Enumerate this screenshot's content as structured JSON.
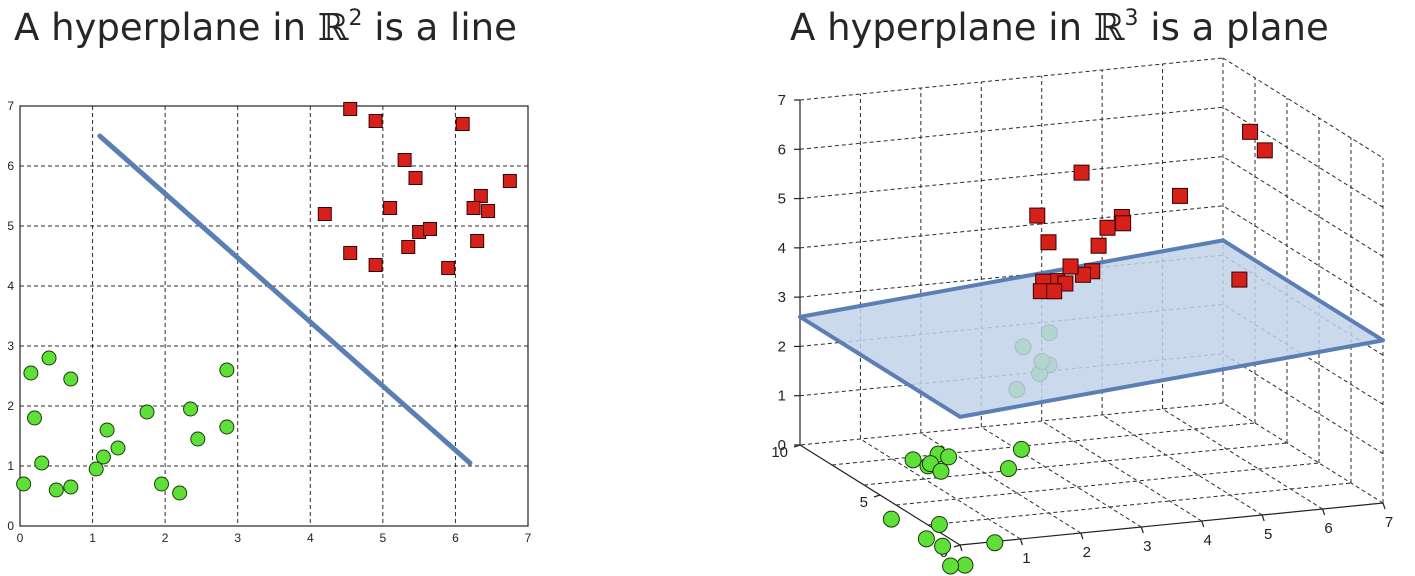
{
  "titles": {
    "left": {
      "prefix": "A hyperplane in ",
      "symbol": "ℝ",
      "power": "2",
      "suffix": " is a line"
    },
    "right": {
      "prefix": "A hyperplane in ",
      "symbol": "ℝ",
      "power": "3",
      "suffix": " is a plane"
    }
  },
  "colors": {
    "class_red": "#d6201a",
    "class_green": "#5ee038",
    "hyperplane": "#5b7fb4",
    "plane_fill": "#c2d2ea"
  },
  "chart_data": [
    {
      "type": "scatter",
      "xlim": [
        0,
        7
      ],
      "ylim": [
        0,
        7
      ],
      "grid": true,
      "x_ticks": [
        "0",
        "1",
        "2",
        "3",
        "4",
        "5",
        "6",
        "7"
      ],
      "y_ticks": [
        "0",
        "1",
        "2",
        "3",
        "4",
        "5",
        "6",
        "7"
      ],
      "series": [
        {
          "marker": "square",
          "color": "#d6201a",
          "points": [
            [
              4.55,
              6.95
            ],
            [
              4.9,
              6.75
            ],
            [
              6.1,
              6.7
            ],
            [
              5.3,
              6.1
            ],
            [
              5.45,
              5.8
            ],
            [
              6.75,
              5.75
            ],
            [
              6.35,
              5.5
            ],
            [
              4.2,
              5.2
            ],
            [
              5.1,
              5.3
            ],
            [
              6.25,
              5.3
            ],
            [
              6.45,
              5.25
            ],
            [
              5.5,
              4.9
            ],
            [
              5.65,
              4.95
            ],
            [
              5.35,
              4.65
            ],
            [
              6.3,
              4.75
            ],
            [
              4.55,
              4.55
            ],
            [
              4.9,
              4.35
            ],
            [
              5.9,
              4.3
            ]
          ]
        },
        {
          "marker": "circle",
          "color": "#5ee038",
          "points": [
            [
              0.4,
              2.8
            ],
            [
              0.15,
              2.55
            ],
            [
              0.7,
              2.45
            ],
            [
              2.85,
              2.6
            ],
            [
              1.75,
              1.9
            ],
            [
              2.35,
              1.95
            ],
            [
              0.2,
              1.8
            ],
            [
              1.2,
              1.6
            ],
            [
              2.85,
              1.65
            ],
            [
              2.45,
              1.45
            ],
            [
              1.35,
              1.3
            ],
            [
              1.15,
              1.15
            ],
            [
              0.3,
              1.05
            ],
            [
              1.05,
              0.95
            ],
            [
              0.05,
              0.7
            ],
            [
              0.5,
              0.6
            ],
            [
              0.7,
              0.65
            ],
            [
              1.95,
              0.7
            ],
            [
              2.2,
              0.55
            ]
          ]
        }
      ],
      "line": {
        "x": [
          1.1,
          6.2
        ],
        "y": [
          6.5,
          1.05
        ]
      }
    },
    {
      "type": "scatter",
      "dimensions": 3,
      "xlim": [
        0,
        7
      ],
      "ylim": [
        0,
        10
      ],
      "zlim": [
        0,
        7
      ],
      "grid": true,
      "x_ticks": [
        "0",
        "1",
        "2",
        "3",
        "4",
        "5",
        "6",
        "7"
      ],
      "y_ticks": [
        "0",
        "5",
        "10"
      ],
      "z_ticks": [
        "0",
        "1",
        "2",
        "3",
        "4",
        "5",
        "6",
        "7"
      ],
      "series": [
        {
          "marker": "square",
          "color": "#d6201a",
          "points": [
            [
              3.6,
              6.0,
              5.9
            ],
            [
              6.6,
              6.8,
              6.2
            ],
            [
              6.5,
              5.5,
              6.1
            ],
            [
              3.0,
              6.5,
              5.0
            ],
            [
              4.4,
              7.4,
              4.4
            ],
            [
              4.4,
              6.5,
              4.8
            ],
            [
              4.5,
              6.8,
              4.6
            ],
            [
              3.0,
              5.8,
              4.6
            ],
            [
              5.6,
              7.4,
              4.9
            ],
            [
              6.0,
              5.2,
              3.6
            ],
            [
              3.1,
              4.8,
              4.3
            ],
            [
              2.7,
              5.0,
              4.0
            ],
            [
              3.2,
              4.4,
              4.2
            ],
            [
              2.8,
              4.5,
              4.1
            ],
            [
              3.3,
              4.2,
              4.3
            ],
            [
              3.2,
              5.5,
              3.8
            ],
            [
              3.2,
              6.2,
              3.5
            ],
            [
              2.9,
              5.9,
              3.6
            ],
            [
              4.2,
              7.2,
              4.1
            ]
          ]
        },
        {
          "marker": "circle",
          "color": "#5ee038",
          "points": [
            [
              2.5,
              5.5,
              2.6
            ],
            [
              2.0,
              4.0,
              2.1
            ],
            [
              3.2,
              6.5,
              2.6
            ],
            [
              2.8,
              5.0,
              2.3
            ],
            [
              3.0,
              6.2,
              2.1
            ],
            [
              2.8,
              5.6,
              2.0
            ],
            [
              0.6,
              5.2,
              0.6
            ],
            [
              0.9,
              5.4,
              0.4
            ],
            [
              1.2,
              5.9,
              0.5
            ],
            [
              1.1,
              6.0,
              0.3
            ],
            [
              1.4,
              6.0,
              0.4
            ],
            [
              1.3,
              6.1,
              0.1
            ],
            [
              2.5,
              5.6,
              0.5
            ],
            [
              2.1,
              4.9,
              0.3
            ],
            [
              1.3,
              6.2,
              -1.0
            ],
            [
              1.3,
              6.0,
              -1.4
            ],
            [
              0.4,
              5.8,
              -0.7
            ],
            [
              1.3,
              5.5,
              -1.7
            ],
            [
              1.3,
              4.6,
              -1.5
            ],
            [
              1.9,
              5.0,
              -1.2
            ],
            [
              0.9,
              5.5,
              -1.1
            ]
          ]
        }
      ],
      "plane_corners": [
        [
          0,
          10,
          2.6
        ],
        [
          7,
          10,
          3.3
        ],
        [
          7,
          0,
          3.3
        ],
        [
          0,
          0,
          2.6
        ]
      ]
    }
  ]
}
